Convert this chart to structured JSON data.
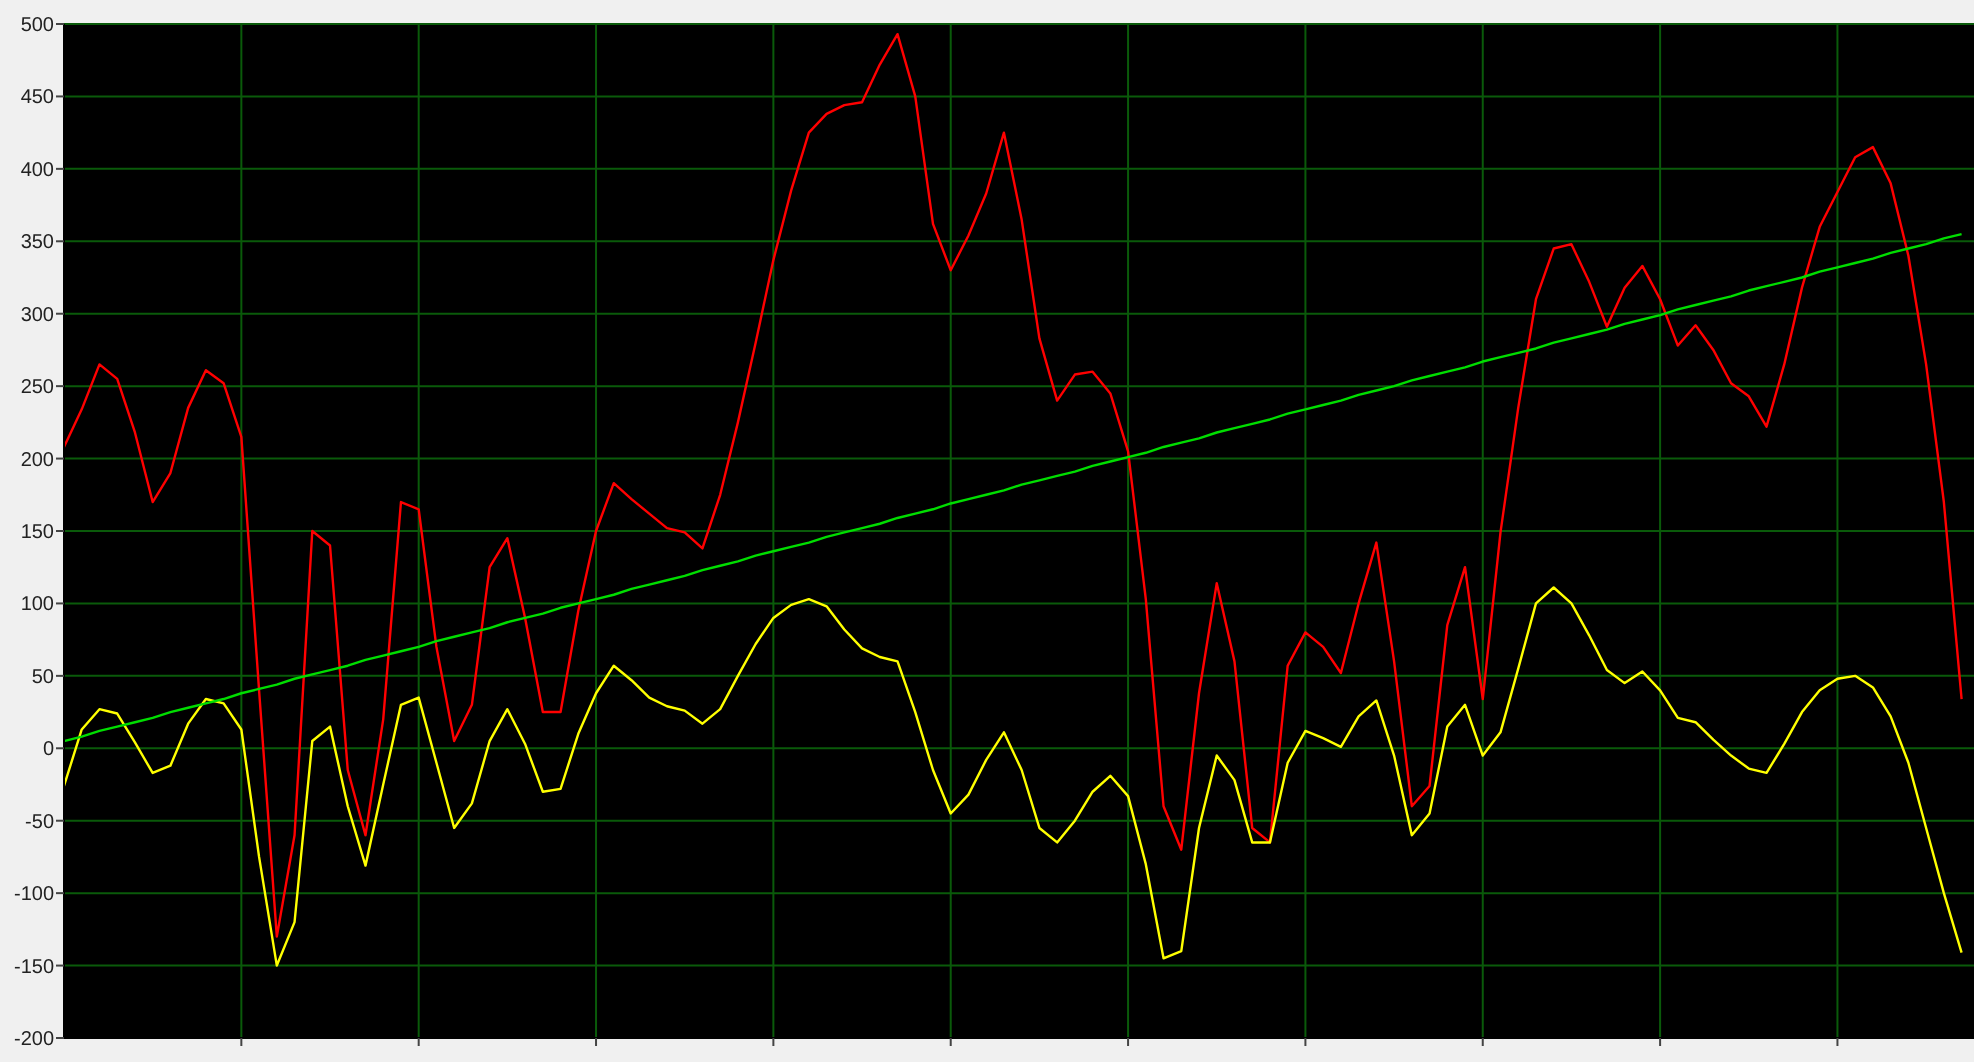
{
  "chart_data": {
    "type": "line",
    "tick_labels": "y",
    "grid": true,
    "line_style": "solid",
    "categories": [
      null,
      null,
      null,
      null,
      null,
      null,
      null,
      null,
      null,
      null,
      null,
      null,
      null,
      null,
      null,
      null,
      null,
      null,
      null,
      null,
      null,
      null,
      null,
      null,
      null,
      null,
      null,
      null,
      null,
      null,
      null,
      null,
      null,
      null,
      null,
      null,
      null,
      null,
      null,
      null,
      null,
      null,
      null,
      null,
      null,
      null,
      null,
      null,
      null,
      null,
      null,
      null,
      null,
      null,
      null,
      null,
      null,
      null,
      null,
      null,
      null,
      null,
      null,
      null,
      null,
      null,
      null,
      null,
      null,
      null,
      null,
      null,
      null,
      null,
      null,
      null,
      null,
      null,
      null,
      null,
      null,
      null,
      null,
      null,
      null,
      null,
      null,
      null,
      null,
      null,
      null,
      null,
      null,
      null,
      null,
      null,
      null,
      null,
      null,
      null,
      null,
      null,
      null,
      null,
      null,
      null,
      null,
      null
    ],
    "ylim": [
      -200,
      500
    ],
    "yticks": [
      -200,
      -150,
      -100,
      -50,
      0,
      50,
      100,
      150,
      200,
      250,
      300,
      350,
      400,
      450,
      500
    ],
    "series": [
      {
        "color": "#ff0000",
        "values": [
          208,
          234,
          265,
          255,
          218,
          170,
          190,
          235,
          261,
          252,
          215,
          40,
          -130,
          -60,
          150,
          140,
          -15,
          -60,
          20,
          170,
          165,
          70,
          5,
          30,
          125,
          145,
          90,
          25,
          25,
          95,
          150,
          183,
          172,
          162,
          152,
          149,
          138,
          175,
          225,
          280,
          337,
          385,
          425,
          438,
          444,
          446,
          472,
          493,
          450,
          362,
          330,
          354,
          383,
          425,
          365,
          283,
          240,
          258,
          260,
          245,
          205,
          103,
          -40,
          -70,
          38,
          114,
          60,
          -55,
          -65,
          57,
          80,
          70,
          52,
          100,
          142,
          60,
          -40,
          -26,
          85,
          125,
          34,
          149,
          235,
          310,
          345,
          348,
          322,
          291,
          318,
          333,
          310,
          278,
          292,
          275,
          252,
          243,
          222,
          265,
          318,
          360,
          384,
          408,
          415,
          390,
          340,
          265,
          170,
          34
        ]
      },
      {
        "color": "#ffff00",
        "values": [
          -26,
          13,
          27,
          24,
          4,
          -17,
          -12,
          17,
          34,
          31,
          13,
          -75,
          -150,
          -120,
          5,
          15,
          -40,
          -81,
          -25,
          30,
          35,
          -10,
          -55,
          -38,
          5,
          27,
          3,
          -30,
          -28,
          10,
          38,
          57,
          47,
          35,
          29,
          26,
          17,
          27,
          50,
          72,
          90,
          99,
          103,
          98,
          82,
          69,
          63,
          60,
          25,
          -15,
          -45,
          -32,
          -8,
          11,
          -15,
          -55,
          -65,
          -50,
          -30,
          -19,
          -33,
          -80,
          -145,
          -140,
          -55,
          -5,
          -22,
          -65,
          -65,
          -10,
          12,
          7,
          1,
          22,
          33,
          -5,
          -60,
          -45,
          15,
          30,
          -5,
          11,
          55,
          100,
          111,
          100,
          78,
          54,
          45,
          53,
          40,
          21,
          18,
          6,
          -5,
          -14,
          -17,
          3,
          25,
          40,
          48,
          50,
          42,
          22,
          -10,
          -55,
          -100,
          -141
        ]
      },
      {
        "color": "#00dd00",
        "values": [
          5,
          8,
          12,
          15,
          18,
          21,
          25,
          28,
          31,
          34,
          38,
          41,
          44,
          48,
          51,
          54,
          57,
          61,
          64,
          67,
          70,
          74,
          77,
          80,
          83,
          87,
          90,
          93,
          97,
          100,
          103,
          106,
          110,
          113,
          116,
          119,
          123,
          126,
          129,
          133,
          136,
          139,
          142,
          146,
          149,
          152,
          155,
          159,
          162,
          165,
          169,
          172,
          175,
          178,
          182,
          185,
          188,
          191,
          195,
          198,
          201,
          204,
          208,
          211,
          214,
          218,
          221,
          224,
          227,
          231,
          234,
          237,
          240,
          244,
          247,
          250,
          254,
          257,
          260,
          263,
          267,
          270,
          273,
          276,
          280,
          283,
          286,
          289,
          293,
          296,
          299,
          303,
          306,
          309,
          312,
          316,
          319,
          322,
          325,
          329,
          332,
          335,
          338,
          342,
          345,
          348,
          352,
          355
        ]
      }
    ]
  }
}
